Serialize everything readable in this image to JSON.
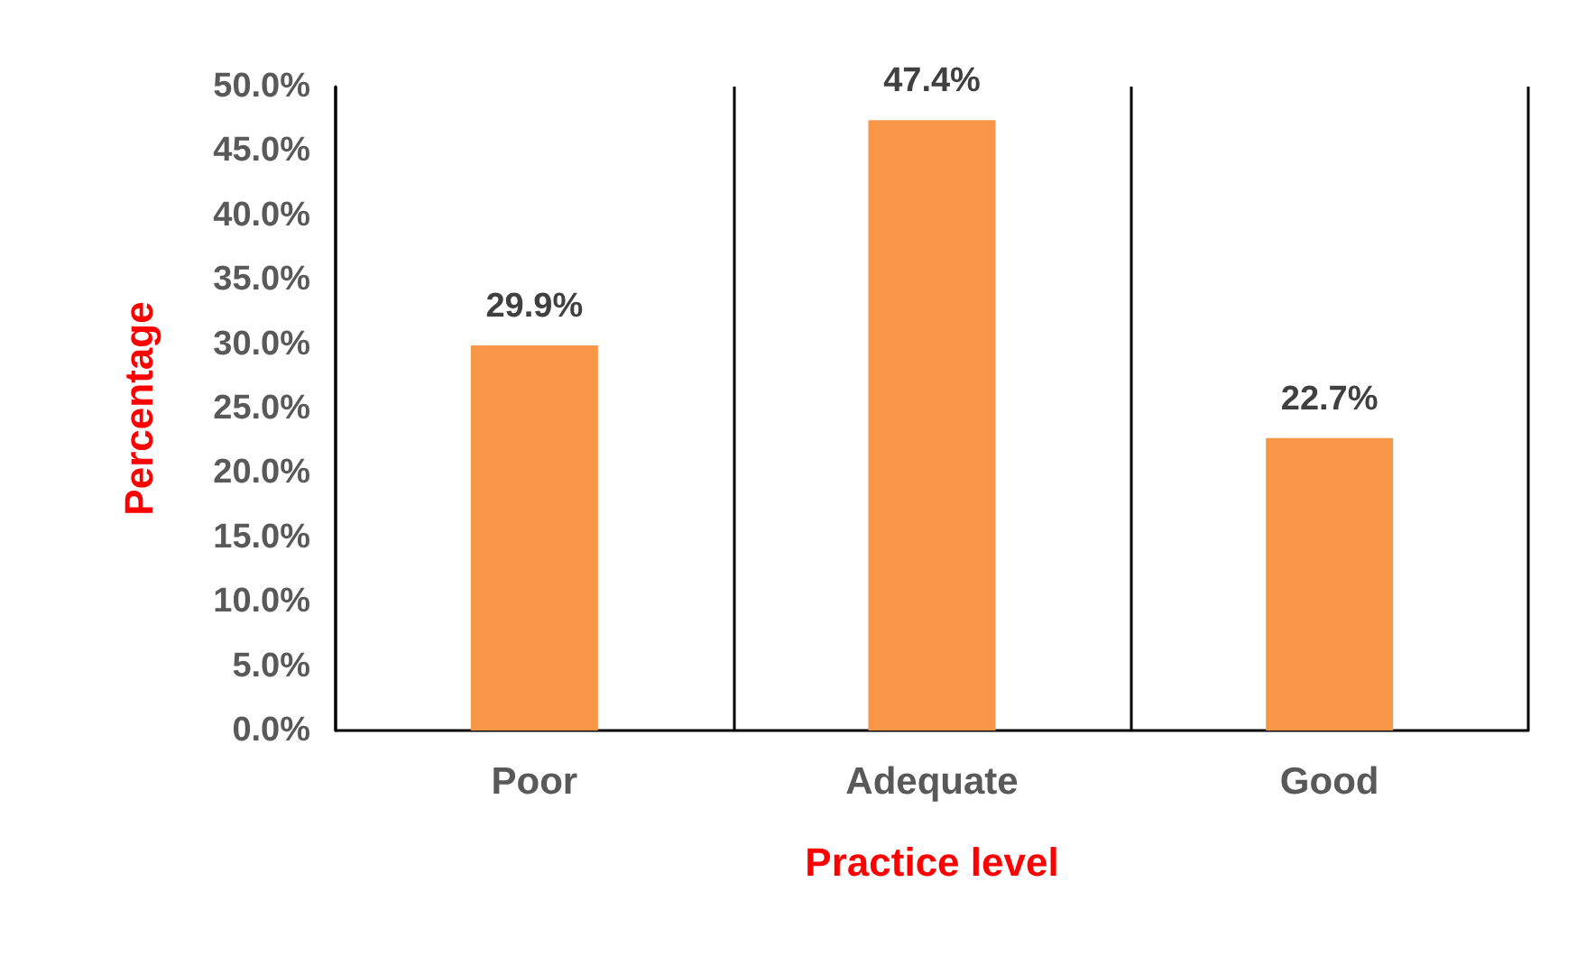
{
  "chart_data": {
    "type": "bar",
    "xlabel": "Practice level",
    "ylabel": "Percentage",
    "categories": [
      "Poor",
      "Adequate",
      "Good"
    ],
    "values": [
      29.9,
      47.4,
      22.7
    ],
    "value_labels": [
      "29.9%",
      "47.4%",
      "22.7%"
    ],
    "color": "#f79646",
    "ylim": [
      0,
      50
    ],
    "yticks": [
      {
        "value": 0,
        "label": "0.0%"
      },
      {
        "value": 5,
        "label": "5.0%"
      },
      {
        "value": 10,
        "label": "10.0%"
      },
      {
        "value": 15,
        "label": "15.0%"
      },
      {
        "value": 20,
        "label": "20.0%"
      },
      {
        "value": 25,
        "label": "25.0%"
      },
      {
        "value": 30,
        "label": "30.0%"
      },
      {
        "value": 35,
        "label": "35.0%"
      },
      {
        "value": 40,
        "label": "40.0%"
      },
      {
        "value": 45,
        "label": "45.0%"
      },
      {
        "value": 50,
        "label": "50.0%"
      }
    ],
    "grid": "x"
  }
}
